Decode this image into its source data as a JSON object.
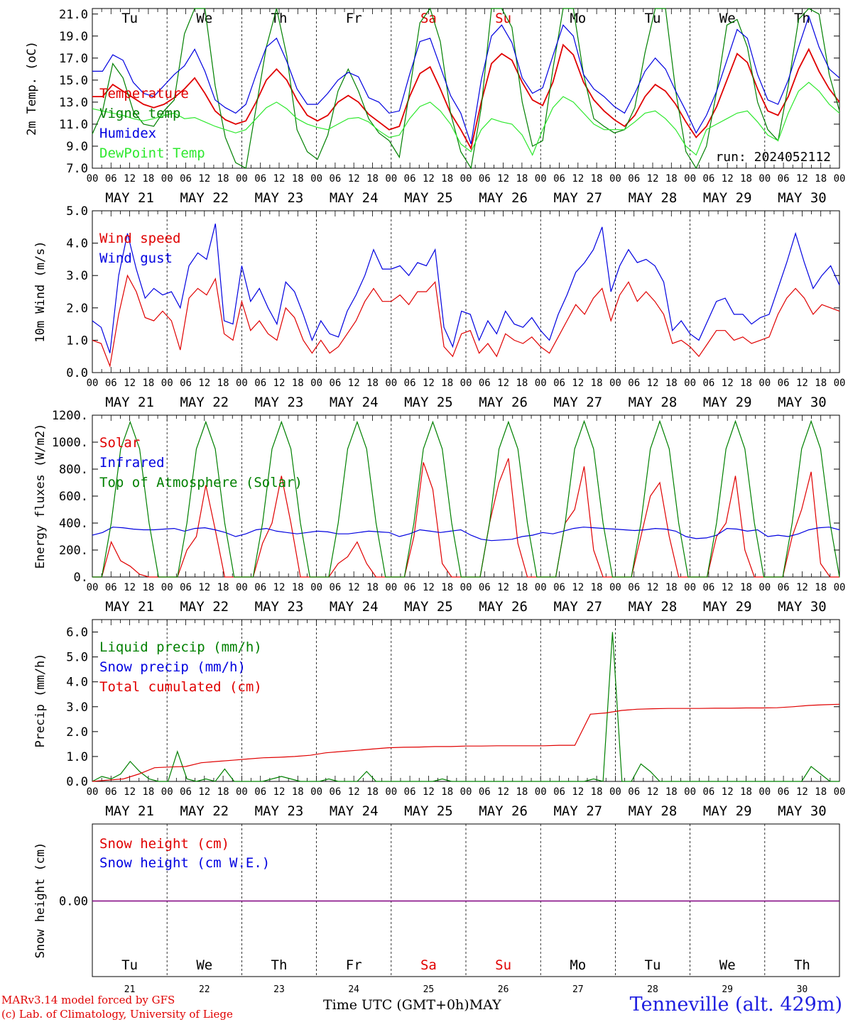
{
  "footer": {
    "credit_line1": "MARv3.14 model forced by GFS",
    "credit_line2": "(c) Lab. of Climatology, University of Liege",
    "xaxis_title": "Time UTC (GMT+0h)",
    "month_label": "MAY",
    "station": "Tenneville (alt. 429m)"
  },
  "colors": {
    "red": "#e00000",
    "green": "#008000",
    "blue": "#0000e0",
    "light_green": "#2ee82e",
    "purple": "#800080",
    "weekend_red": "#e00000"
  },
  "chart_data": [
    {
      "type": "line",
      "ylabel": "2m Temp. (oC)",
      "ylim": [
        7.0,
        21.5
      ],
      "yticks": [
        "7.0",
        "9.0",
        "11.0",
        "13.0",
        "15.0",
        "17.0",
        "19.0",
        "21.0"
      ],
      "run_label": "run: 2024052112",
      "day_names": [
        "Tu",
        "We",
        "Th",
        "Fr",
        "Sa",
        "Su",
        "Mo",
        "Tu",
        "We",
        "Th"
      ],
      "weekend_days": [
        "Sa",
        "Su"
      ],
      "date_labels": [
        "MAY 21",
        "MAY 22",
        "MAY 23",
        "MAY 24",
        "MAY 25",
        "MAY 26",
        "MAY 27",
        "MAY 28",
        "MAY 29",
        "MAY 30"
      ],
      "hour_ticks": [
        "00",
        "06",
        "12",
        "18"
      ],
      "x_hours_step": 3,
      "series": [
        {
          "name": "Temperature",
          "color": "#e00000",
          "values": [
            13.5,
            13.5,
            14.6,
            14.0,
            13.4,
            12.8,
            12.5,
            12.8,
            13.4,
            14.2,
            15.2,
            13.8,
            12.2,
            11.4,
            11.0,
            11.3,
            13.0,
            15.0,
            16.0,
            15.0,
            13.2,
            11.8,
            11.3,
            11.8,
            13.0,
            13.6,
            13.0,
            11.9,
            11.2,
            10.5,
            10.8,
            13.5,
            15.6,
            16.2,
            14.2,
            12.0,
            10.5,
            8.8,
            13.0,
            16.5,
            17.4,
            16.8,
            14.8,
            13.2,
            12.7,
            14.8,
            18.2,
            17.3,
            14.8,
            13.2,
            12.2,
            11.4,
            10.8,
            11.8,
            13.5,
            14.6,
            14.0,
            12.8,
            11.2,
            9.8,
            10.8,
            12.6,
            15.0,
            17.4,
            16.6,
            14.2,
            12.2,
            11.8,
            13.5,
            16.0,
            17.8,
            15.8,
            14.2,
            13.0
          ]
        },
        {
          "name": "Vigne temp",
          "color": "#008000",
          "values": [
            10.1,
            12.2,
            16.5,
            15.2,
            12.2,
            11.0,
            10.8,
            12.2,
            13.2,
            19.2,
            23.5,
            24.0,
            14.5,
            9.8,
            7.5,
            7.0,
            12.5,
            18.0,
            22.0,
            17.2,
            10.5,
            8.5,
            7.8,
            10.0,
            14.0,
            16.0,
            14.0,
            11.5,
            10.2,
            9.5,
            8.0,
            14.0,
            20.2,
            23.0,
            18.5,
            12.0,
            8.5,
            6.5,
            12.5,
            22.0,
            24.0,
            19.8,
            13.0,
            9.0,
            9.5,
            16.0,
            24.5,
            22.5,
            15.5,
            11.5,
            10.8,
            10.2,
            10.5,
            12.5,
            17.5,
            24.0,
            21.5,
            14.0,
            8.5,
            6.0,
            9.0,
            14.0,
            20.0,
            20.5,
            18.0,
            13.0,
            10.5,
            9.5,
            14.5,
            20.5,
            24.0,
            21.0,
            15.5,
            12.2
          ]
        },
        {
          "name": "Humidex",
          "color": "#0000e0",
          "values": [
            15.8,
            15.8,
            17.3,
            16.8,
            14.8,
            13.8,
            13.5,
            14.5,
            15.5,
            16.3,
            17.8,
            15.8,
            13.2,
            12.5,
            12.0,
            12.8,
            15.5,
            18.0,
            18.8,
            16.7,
            14.2,
            12.8,
            12.8,
            13.8,
            15.0,
            15.7,
            15.3,
            13.4,
            13.0,
            12.0,
            12.2,
            15.5,
            18.5,
            18.8,
            16.2,
            13.6,
            12.0,
            9.2,
            15.0,
            19.0,
            20.0,
            18.4,
            15.2,
            13.8,
            14.3,
            17.2,
            20.0,
            19.0,
            15.5,
            14.2,
            13.5,
            12.6,
            12.0,
            13.8,
            15.8,
            17.0,
            16.0,
            14.0,
            12.2,
            10.2,
            11.8,
            14.0,
            16.8,
            19.6,
            18.8,
            15.5,
            13.2,
            12.8,
            15.0,
            18.0,
            20.8,
            18.0,
            16.0,
            15.2
          ]
        },
        {
          "name": "DewPoint Temp",
          "color": "#2ee82e",
          "values": [
            12.4,
            12.2,
            12.0,
            11.8,
            11.5,
            11.3,
            11.5,
            11.8,
            12.0,
            11.5,
            11.6,
            11.2,
            10.8,
            10.5,
            10.2,
            10.5,
            11.5,
            12.5,
            13.0,
            12.4,
            11.5,
            11.0,
            10.7,
            10.5,
            11.0,
            11.5,
            11.6,
            11.2,
            10.4,
            9.8,
            10.0,
            11.5,
            12.6,
            13.0,
            12.2,
            11.0,
            9.2,
            8.5,
            10.5,
            11.5,
            11.2,
            11.0,
            10.0,
            8.2,
            10.5,
            12.5,
            13.5,
            13.0,
            12.0,
            11.0,
            10.5,
            10.5,
            10.5,
            11.2,
            12.0,
            12.2,
            11.5,
            10.5,
            9.0,
            8.2,
            10.5,
            11.0,
            11.5,
            12.0,
            12.2,
            11.2,
            10.0,
            9.5,
            12.0,
            14.0,
            14.8,
            14.0,
            12.8,
            12.0
          ]
        }
      ]
    },
    {
      "type": "line",
      "ylabel": "10m Wind (m/s)",
      "ylim": [
        0,
        5
      ],
      "yticks": [
        "0.0",
        "1.0",
        "2.0",
        "3.0",
        "4.0",
        "5.0"
      ],
      "date_labels": [
        "MAY 21",
        "MAY 22",
        "MAY 23",
        "MAY 24",
        "MAY 25",
        "MAY 26",
        "MAY 27",
        "MAY 28",
        "MAY 29",
        "MAY 30"
      ],
      "hour_ticks": [
        "00",
        "06",
        "12",
        "18"
      ],
      "x_hours_step": 3,
      "series": [
        {
          "name": "Wind speed",
          "color": "#e00000",
          "values": [
            1.0,
            0.9,
            0.2,
            1.8,
            3.0,
            2.5,
            1.7,
            1.6,
            1.9,
            1.6,
            0.7,
            2.3,
            2.6,
            2.4,
            2.9,
            1.2,
            1.0,
            2.2,
            1.3,
            1.6,
            1.2,
            1.0,
            2.0,
            1.7,
            1.0,
            0.6,
            1.0,
            0.6,
            0.8,
            1.2,
            1.6,
            2.2,
            2.6,
            2.2,
            2.2,
            2.4,
            2.1,
            2.5,
            2.5,
            2.8,
            0.8,
            0.5,
            1.2,
            1.3,
            0.6,
            0.9,
            0.5,
            1.2,
            1.0,
            0.9,
            1.1,
            0.8,
            0.6,
            1.1,
            1.6,
            2.1,
            1.8,
            2.3,
            2.6,
            1.6,
            2.4,
            2.8,
            2.2,
            2.5,
            2.2,
            1.8,
            0.9,
            1.0,
            0.8,
            0.5,
            0.9,
            1.3,
            1.3,
            1.0,
            1.1,
            0.9,
            1.0,
            1.1,
            1.8,
            2.3,
            2.6,
            2.3,
            1.8,
            2.1,
            2.0,
            1.9
          ]
        },
        {
          "name": "Wind gust",
          "color": "#0000e0",
          "values": [
            1.6,
            1.4,
            0.6,
            3.0,
            4.3,
            3.2,
            2.3,
            2.6,
            2.4,
            2.5,
            2.0,
            3.3,
            3.7,
            3.5,
            4.6,
            1.6,
            1.5,
            3.3,
            2.2,
            2.6,
            2.0,
            1.5,
            2.8,
            2.5,
            1.8,
            1.0,
            1.6,
            1.2,
            1.1,
            1.9,
            2.4,
            3.0,
            3.8,
            3.2,
            3.2,
            3.3,
            3.0,
            3.4,
            3.3,
            3.8,
            1.4,
            0.8,
            1.9,
            1.8,
            1.0,
            1.6,
            1.2,
            1.9,
            1.5,
            1.4,
            1.7,
            1.3,
            1.0,
            1.8,
            2.4,
            3.1,
            3.4,
            3.8,
            4.5,
            2.5,
            3.3,
            3.8,
            3.4,
            3.5,
            3.3,
            2.8,
            1.3,
            1.6,
            1.2,
            1.0,
            1.6,
            2.2,
            2.3,
            1.8,
            1.8,
            1.5,
            1.7,
            1.8,
            2.6,
            3.4,
            4.3,
            3.4,
            2.6,
            3.0,
            3.3,
            2.7
          ]
        }
      ]
    },
    {
      "type": "line",
      "ylabel": "Energy fluxes (W/m2)",
      "ylim": [
        0,
        1200
      ],
      "yticks": [
        "0.",
        "200.",
        "400.",
        "600.",
        "800.",
        "1000.",
        "1200."
      ],
      "date_labels": [
        "MAY 21",
        "MAY 22",
        "MAY 23",
        "MAY 24",
        "MAY 25",
        "MAY 26",
        "MAY 27",
        "MAY 28",
        "MAY 29",
        "MAY 30"
      ],
      "hour_ticks": [
        "00",
        "06",
        "12",
        "18"
      ],
      "x_hours_step": 3,
      "series": [
        {
          "name": "Solar",
          "color": "#e00000",
          "values": [
            0,
            0,
            260,
            120,
            80,
            20,
            0,
            0,
            0,
            0,
            200,
            300,
            680,
            350,
            0,
            0,
            0,
            0,
            250,
            400,
            750,
            400,
            0,
            0,
            0,
            0,
            100,
            150,
            260,
            100,
            0,
            0,
            0,
            0,
            300,
            850,
            650,
            100,
            0,
            0,
            0,
            0,
            400,
            700,
            880,
            250,
            0,
            0,
            0,
            0,
            400,
            500,
            820,
            200,
            0,
            0,
            0,
            0,
            300,
            600,
            700,
            300,
            0,
            0,
            0,
            0,
            300,
            400,
            750,
            200,
            0,
            0,
            0,
            0,
            300,
            500,
            780,
            100,
            0,
            0
          ]
        },
        {
          "name": "Infrared",
          "color": "#0000e0",
          "values": [
            310,
            330,
            370,
            365,
            355,
            350,
            350,
            355,
            360,
            340,
            360,
            365,
            350,
            330,
            300,
            320,
            350,
            360,
            340,
            330,
            320,
            330,
            340,
            335,
            320,
            320,
            330,
            340,
            335,
            330,
            300,
            320,
            350,
            340,
            330,
            340,
            350,
            310,
            280,
            270,
            275,
            280,
            300,
            310,
            330,
            320,
            340,
            360,
            370,
            365,
            360,
            355,
            350,
            345,
            350,
            360,
            355,
            340,
            300,
            285,
            290,
            310,
            360,
            355,
            340,
            350,
            300,
            310,
            300,
            320,
            350,
            365,
            370,
            350
          ]
        },
        {
          "name": "Top of Atmosphere (Solar)",
          "color": "#008000",
          "values": [
            0,
            0,
            400,
            950,
            1150,
            950,
            400,
            0,
            0,
            0,
            400,
            950,
            1150,
            950,
            400,
            0,
            0,
            0,
            400,
            950,
            1150,
            950,
            400,
            0,
            0,
            0,
            400,
            950,
            1150,
            950,
            400,
            0,
            0,
            0,
            400,
            950,
            1150,
            950,
            400,
            0,
            0,
            0,
            400,
            950,
            1150,
            950,
            400,
            0,
            0,
            0,
            400,
            950,
            1155,
            950,
            400,
            0,
            0,
            0,
            400,
            950,
            1155,
            950,
            400,
            0,
            0,
            0,
            400,
            950,
            1155,
            950,
            400,
            0,
            0,
            0,
            400,
            950,
            1155,
            950,
            400,
            0
          ]
        }
      ]
    },
    {
      "type": "line",
      "ylabel": "Precip (mm/h)",
      "ylim": [
        0,
        6.5
      ],
      "yticks": [
        "0.0",
        "1.0",
        "2.0",
        "3.0",
        "4.0",
        "5.0",
        "6.0"
      ],
      "date_labels": [
        "MAY 21",
        "MAY 22",
        "MAY 23",
        "MAY 24",
        "MAY 25",
        "MAY 26",
        "MAY 27",
        "MAY 28",
        "MAY 29",
        "MAY 30"
      ],
      "hour_ticks": [
        "00",
        "06",
        "12",
        "18"
      ],
      "x_hours_step": 3,
      "series": [
        {
          "name": "Liquid precip (mm/h)",
          "color": "#008000",
          "values": [
            0,
            0.2,
            0.1,
            0.3,
            0.8,
            0.4,
            0.1,
            0,
            0,
            1.2,
            0.1,
            0,
            0.1,
            0,
            0.5,
            0,
            0,
            0,
            0,
            0.1,
            0.2,
            0.1,
            0,
            0,
            0,
            0.1,
            0,
            0,
            0,
            0.4,
            0,
            0,
            0,
            0,
            0,
            0,
            0,
            0.1,
            0,
            0,
            0,
            0,
            0,
            0,
            0,
            0,
            0,
            0,
            0,
            0,
            0,
            0,
            0,
            0.1,
            0,
            6.0,
            0,
            0,
            0.7,
            0.4,
            0,
            0,
            0,
            0,
            0,
            0,
            0,
            0,
            0,
            0,
            0,
            0,
            0,
            0,
            0,
            0,
            0.6,
            0.3,
            0,
            0
          ]
        },
        {
          "name": "Snow precip (mm/h)",
          "color": "#0000e0",
          "values": []
        },
        {
          "name": "Total cumulated (cm)",
          "color": "#e00000",
          "values": [
            0,
            0.05,
            0.1,
            0.3,
            0.55,
            0.58,
            0.6,
            0.75,
            0.8,
            0.85,
            0.9,
            0.95,
            0.97,
            1.0,
            1.05,
            1.15,
            1.2,
            1.25,
            1.3,
            1.35,
            1.37,
            1.38,
            1.4,
            1.4,
            1.42,
            1.42,
            1.43,
            1.43,
            1.43,
            1.43,
            1.45,
            1.45,
            2.7,
            2.75,
            2.85,
            2.9,
            2.92,
            2.93,
            2.93,
            2.93,
            2.94,
            2.94,
            2.95,
            2.95,
            2.96,
            3.0,
            3.05,
            3.08,
            3.1
          ]
        }
      ]
    },
    {
      "type": "line",
      "ylabel": "Snow height (cm)",
      "yticks": [
        "0.00"
      ],
      "day_names": [
        "Tu",
        "We",
        "Th",
        "Fr",
        "Sa",
        "Su",
        "Mo",
        "Tu",
        "We",
        "Th"
      ],
      "day_numbers": [
        "21",
        "22",
        "23",
        "24",
        "25",
        "26",
        "27",
        "28",
        "29",
        "30"
      ],
      "series": [
        {
          "name": "Snow height (cm)",
          "color": "#e00000",
          "values": [
            0,
            0
          ]
        },
        {
          "name": "Snow height (cm W.E.)",
          "color": "#0000e0",
          "values": [
            0,
            0
          ]
        }
      ]
    }
  ]
}
